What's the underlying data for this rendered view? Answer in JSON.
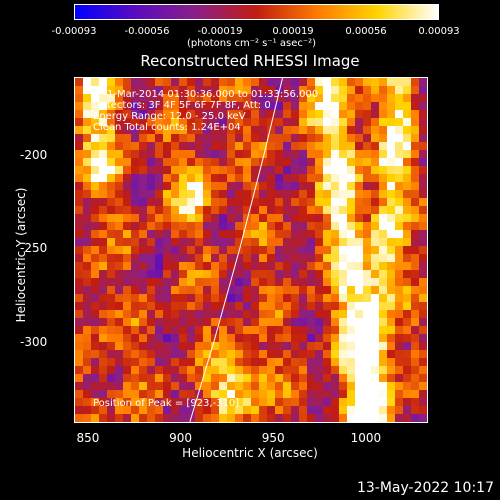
{
  "colorbar": {
    "ticks": [
      "-0.00093",
      "-0.00056",
      "-0.00019",
      "0.00019",
      "0.00056",
      "0.00093"
    ],
    "units": "(photons cm⁻² s⁻¹ asec⁻²)",
    "colors": [
      "#0000ff",
      "#5b0cbf",
      "#8a1f87",
      "#c21d10",
      "#ff7a00",
      "#ffd400",
      "#ffffff"
    ]
  },
  "chart_data": {
    "type": "heatmap",
    "title": "Reconstructed RHESSI Image",
    "xlabel": "Heliocentric X (arcsec)",
    "ylabel": "Heliocentric Y (arcsec)",
    "x_ticks": [
      "850",
      "900",
      "950",
      "1000"
    ],
    "y_ticks": [
      "-200",
      "-250",
      "-300"
    ],
    "xlim": [
      843,
      1033
    ],
    "ylim": [
      -343,
      -159
    ],
    "color_scale": [
      -0.00093,
      0.00093
    ],
    "limb": [
      [
        955,
        -159
      ],
      [
        945,
        -200
      ],
      [
        932,
        -250
      ],
      [
        918,
        -300
      ],
      [
        905,
        -343
      ]
    ],
    "annotations": {
      "time": "1-Mar-2014 01:30:36.000 to 01:33:56.000",
      "detectors": "Detectors: 3F 4F 5F 6F 7F 8F, Att: 0",
      "energy": "Energy Range: 12.0 - 25.0 keV",
      "method_counts": "Clean     Total counts: 1.24E+04",
      "peak": "Position of Peak = [923,-310]"
    }
  },
  "timestamp": "13-May-2022 10:17"
}
